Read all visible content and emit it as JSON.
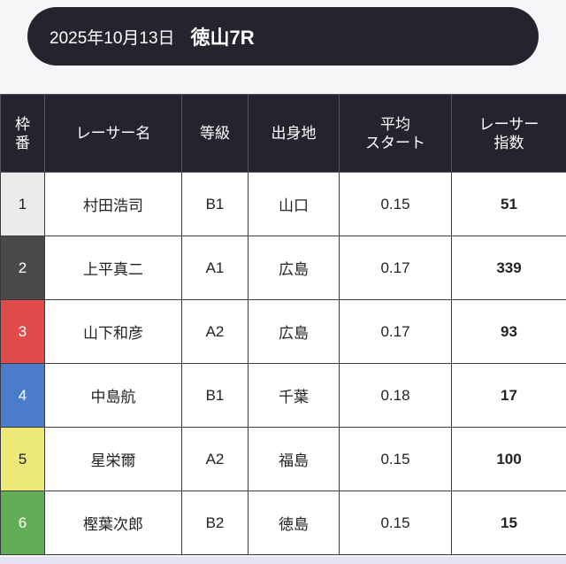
{
  "header": {
    "date": "2025年10月13日",
    "race": "徳山7R"
  },
  "table": {
    "columns": [
      {
        "line1": "枠",
        "line2": "番"
      },
      {
        "line1": "レーサー名",
        "line2": ""
      },
      {
        "line1": "等級",
        "line2": ""
      },
      {
        "line1": "出身地",
        "line2": ""
      },
      {
        "line1": "平均",
        "line2": "スタート"
      },
      {
        "line1": "レーサー",
        "line2": "指数"
      }
    ],
    "rows": [
      {
        "frame": "1",
        "name": "村田浩司",
        "grade": "B1",
        "origin": "山口",
        "avg_start": "0.15",
        "index": "51",
        "color": "#ebebeb",
        "text_color": "#222222"
      },
      {
        "frame": "2",
        "name": "上平真二",
        "grade": "A1",
        "origin": "広島",
        "avg_start": "0.17",
        "index": "339",
        "color": "#4a4a4a",
        "text_color": "#ffffff"
      },
      {
        "frame": "3",
        "name": "山下和彦",
        "grade": "A2",
        "origin": "広島",
        "avg_start": "0.17",
        "index": "93",
        "color": "#de4b48",
        "text_color": "#ffffff"
      },
      {
        "frame": "4",
        "name": "中島航",
        "grade": "B1",
        "origin": "千葉",
        "avg_start": "0.18",
        "index": "17",
        "color": "#4a7cc9",
        "text_color": "#ffffff"
      },
      {
        "frame": "5",
        "name": "星栄爾",
        "grade": "A2",
        "origin": "福島",
        "avg_start": "0.15",
        "index": "100",
        "color": "#ece977",
        "text_color": "#222222"
      },
      {
        "frame": "6",
        "name": "樫葉次郎",
        "grade": "B2",
        "origin": "徳島",
        "avg_start": "0.15",
        "index": "15",
        "color": "#63ad56",
        "text_color": "#ffffff"
      }
    ]
  }
}
